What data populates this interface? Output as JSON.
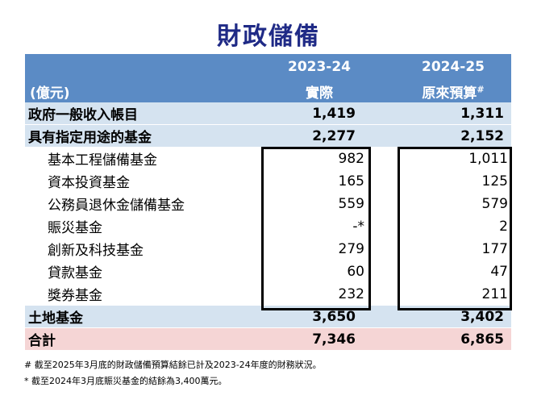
{
  "title": "財政儲備",
  "header": {
    "units": "(億元)",
    "col1_year": "2023-24",
    "col1_sub": "實際",
    "col2_year": "2024-25",
    "col2_sub": "原來預算",
    "col2_mark": "#"
  },
  "rows": [
    {
      "label": "政府一般收入帳目",
      "v1": "1,419",
      "v2": "1,311"
    },
    {
      "label": "具有指定用途的基金",
      "v1": "2,277",
      "v2": "2,152"
    },
    {
      "label": "基本工程儲備基金",
      "v1": "982",
      "v2": "1,011"
    },
    {
      "label": "資本投資基金",
      "v1": "165",
      "v2": "125"
    },
    {
      "label": "公務員退休金儲備基金",
      "v1": "559",
      "v2": "579"
    },
    {
      "label": "賑災基金",
      "v1": "-*",
      "v2": "2"
    },
    {
      "label": "創新及科技基金",
      "v1": "279",
      "v2": "177"
    },
    {
      "label": "貸款基金",
      "v1": "60",
      "v2": "47"
    },
    {
      "label": "獎券基金",
      "v1": "232",
      "v2": "211"
    },
    {
      "label": "土地基金",
      "v1": "3,650",
      "v2": "3,402"
    },
    {
      "label": "合計",
      "v1": "7,346",
      "v2": "6,865"
    }
  ],
  "notes": [
    "# 截至2025年3月底的財政儲備預算結餘已計及2023-24年度的財務狀況。",
    "* 截至2024年3月底賑災基金的結餘為3,400萬元。"
  ],
  "colors": {
    "title": "#1f2a86",
    "header_bg": "#5b8bc5",
    "row_blue": "#d5e3f0",
    "row_pink": "#f5d5d5"
  }
}
